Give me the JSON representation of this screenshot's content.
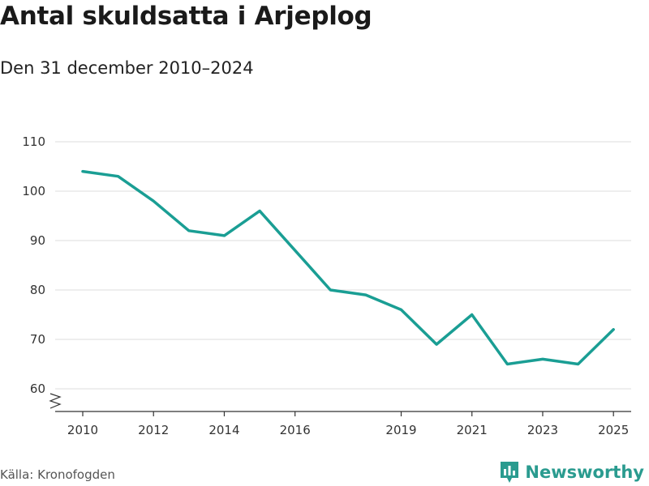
{
  "header": {
    "title": "Antal skuldsatta i Arjeplog",
    "subtitle": "Den 31 december 2010–2024"
  },
  "footer": {
    "source": "Källa: Kronofogden",
    "brand": "Newsworthy"
  },
  "colors": {
    "line": "#1a9e94",
    "grid": "#dddddd",
    "brand": "#2a9b8f"
  },
  "chart_data": {
    "type": "line",
    "title": "Antal skuldsatta i Arjeplog",
    "subtitle": "Den 31 december 2010–2024",
    "xlabel": "",
    "ylabel": "",
    "ylim": [
      55,
      110
    ],
    "y_ticks": [
      60,
      70,
      80,
      90,
      100,
      110
    ],
    "x_range": [
      2010,
      2025.5
    ],
    "x_ticks": [
      2010,
      2012,
      2014,
      2016,
      2019,
      2021,
      2023,
      2025
    ],
    "grid": true,
    "series": [
      {
        "name": "Antal skuldsatta",
        "x": [
          2010,
          2011,
          2012,
          2013,
          2014,
          2015,
          2016,
          2017,
          2018,
          2019,
          2020,
          2021,
          2022,
          2023,
          2024,
          2025
        ],
        "values": [
          104,
          103,
          98,
          92,
          91,
          96,
          88,
          80,
          79,
          76,
          69,
          75,
          65,
          66,
          65,
          72
        ]
      }
    ]
  }
}
